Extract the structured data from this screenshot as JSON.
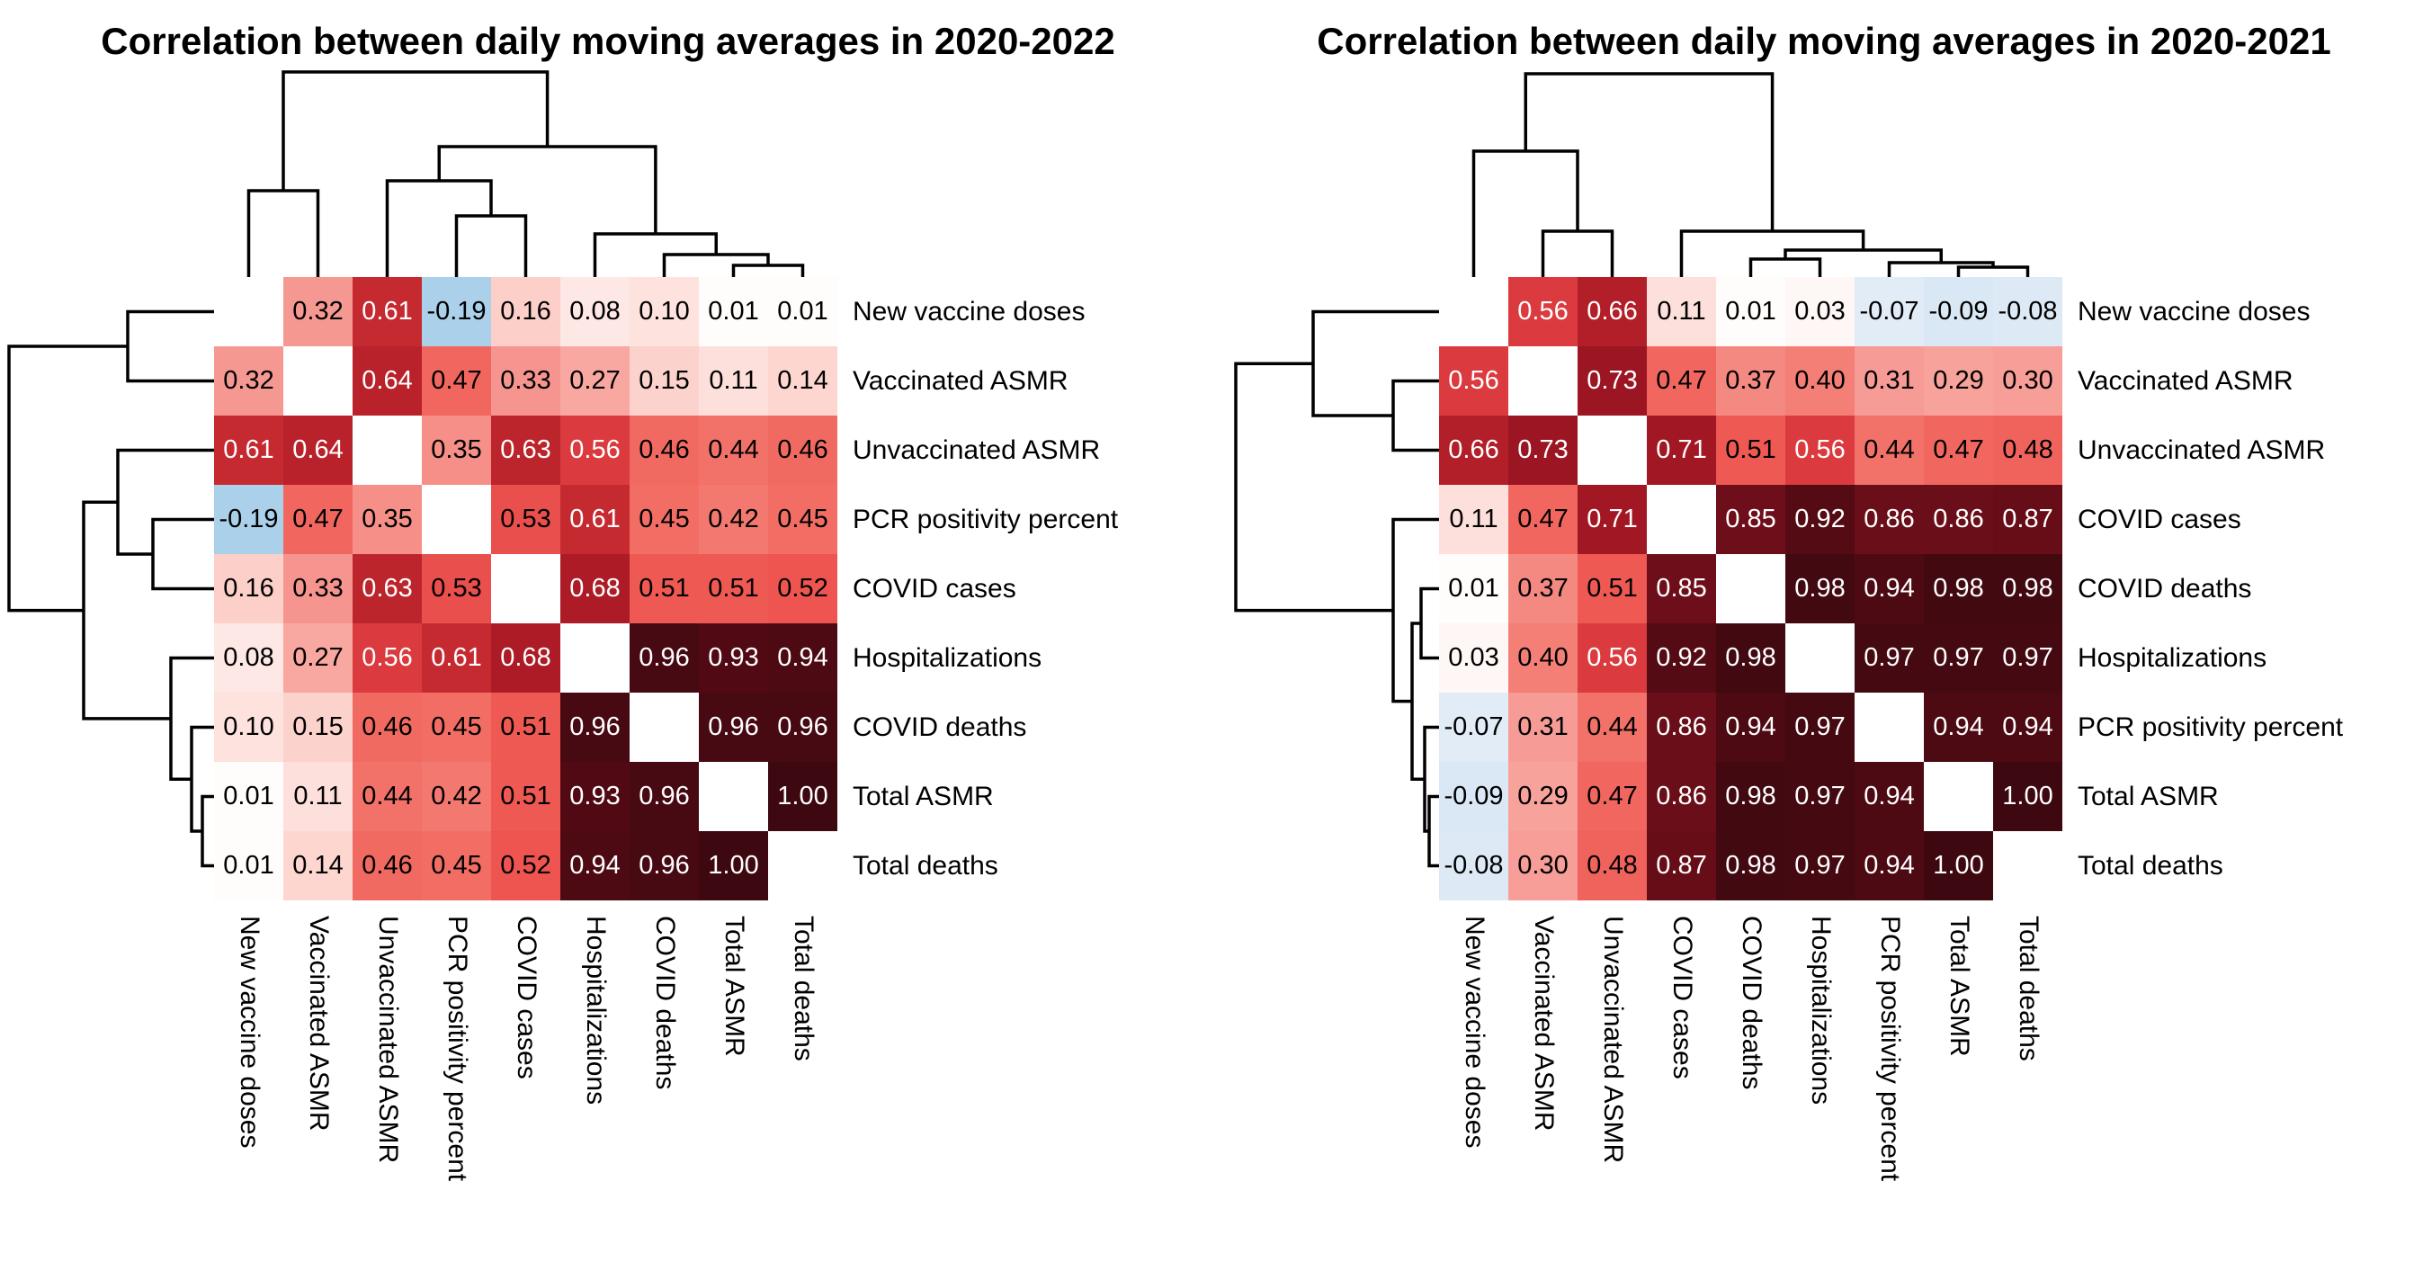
{
  "page": {
    "background": "#ffffff"
  },
  "colormap": {
    "description": "diverging correlation colormap, blue for negative, white at zero, red to dark maroon for positive",
    "negative_color": "#a6cee9",
    "zero_color": "#ffffff",
    "mid_positive_color": "#ee5550",
    "max_color": "#3e0810",
    "white_text_threshold": 0.55,
    "stops": [
      [
        -0.2,
        "#a6cee9"
      ],
      [
        -0.1,
        "#d6e5f3"
      ],
      [
        -0.04,
        "#ebf3fa"
      ],
      [
        0.0,
        "#ffffff"
      ],
      [
        0.04,
        "#fef4f2"
      ],
      [
        0.08,
        "#fde8e5"
      ],
      [
        0.12,
        "#fddcd7"
      ],
      [
        0.16,
        "#fccfc8"
      ],
      [
        0.2,
        "#fac0b9"
      ],
      [
        0.27,
        "#f8a8a0"
      ],
      [
        0.32,
        "#f69892"
      ],
      [
        0.37,
        "#f48981"
      ],
      [
        0.42,
        "#f3786f"
      ],
      [
        0.47,
        "#f1675f"
      ],
      [
        0.52,
        "#ee5550"
      ],
      [
        0.56,
        "#db3b3e"
      ],
      [
        0.61,
        "#c62a31"
      ],
      [
        0.64,
        "#b9222b"
      ],
      [
        0.68,
        "#ac1b26"
      ],
      [
        0.73,
        "#9b1522"
      ],
      [
        0.8,
        "#80101d"
      ],
      [
        0.85,
        "#6e0e1a"
      ],
      [
        0.9,
        "#5c0c16"
      ],
      [
        0.94,
        "#4d0a13"
      ],
      [
        0.97,
        "#440911"
      ],
      [
        1.0,
        "#3e0810"
      ]
    ]
  },
  "chart_data": [
    {
      "type": "heatmap",
      "title": "Correlation between daily moving averages in 2020-2022",
      "legend_position": "none",
      "grid": false,
      "value_range": [
        -1,
        1
      ],
      "cell_values_shown": true,
      "labels": [
        "New vaccine doses",
        "Vaccinated ASMR",
        "Unvaccinated ASMR",
        "PCR positivity percent",
        "COVID cases",
        "Hospitalizations",
        "COVID deaths",
        "Total ASMR",
        "Total deaths"
      ],
      "matrix": [
        [
          null,
          0.32,
          0.61,
          -0.19,
          0.16,
          0.08,
          0.1,
          0.01,
          0.01
        ],
        [
          0.32,
          null,
          0.64,
          0.47,
          0.33,
          0.27,
          0.15,
          0.11,
          0.14
        ],
        [
          0.61,
          0.64,
          null,
          0.35,
          0.63,
          0.56,
          0.46,
          0.44,
          0.46
        ],
        [
          -0.19,
          0.47,
          0.35,
          null,
          0.53,
          0.61,
          0.45,
          0.42,
          0.45
        ],
        [
          0.16,
          0.33,
          0.63,
          0.53,
          null,
          0.68,
          0.51,
          0.51,
          0.52
        ],
        [
          0.08,
          0.27,
          0.56,
          0.61,
          0.68,
          null,
          0.96,
          0.93,
          0.94
        ],
        [
          0.1,
          0.15,
          0.46,
          0.45,
          0.51,
          0.96,
          null,
          0.96,
          0.96
        ],
        [
          0.01,
          0.11,
          0.44,
          0.42,
          0.51,
          0.93,
          0.96,
          null,
          1.0
        ],
        [
          0.01,
          0.14,
          0.46,
          0.45,
          0.52,
          0.94,
          0.96,
          1.0,
          null
        ]
      ],
      "col_dendrogram": [
        [
          7,
          8,
          13
        ],
        [
          6,
          "m0",
          25
        ],
        [
          5,
          "m1",
          48
        ],
        [
          3,
          4,
          68
        ],
        [
          2,
          "m3",
          107
        ],
        [
          "m4",
          "m2",
          145
        ],
        [
          0,
          1,
          96
        ],
        [
          "m6",
          "m5",
          228
        ]
      ],
      "row_dendrogram": [
        [
          7,
          8,
          13
        ],
        [
          6,
          "m0",
          25
        ],
        [
          5,
          "m1",
          48
        ],
        [
          3,
          4,
          68
        ],
        [
          2,
          "m3",
          107
        ],
        [
          "m4",
          "m2",
          145
        ],
        [
          0,
          1,
          96
        ],
        [
          "m6",
          "m5",
          228
        ]
      ]
    },
    {
      "type": "heatmap",
      "title": "Correlation between daily moving averages in 2020-2021",
      "legend_position": "none",
      "grid": false,
      "value_range": [
        -1,
        1
      ],
      "cell_values_shown": true,
      "labels": [
        "New vaccine doses",
        "Vaccinated ASMR",
        "Unvaccinated ASMR",
        "COVID cases",
        "COVID deaths",
        "Hospitalizations",
        "PCR positivity percent",
        "Total ASMR",
        "Total deaths"
      ],
      "matrix": [
        [
          null,
          0.56,
          0.66,
          0.11,
          0.01,
          0.03,
          -0.07,
          -0.09,
          -0.08
        ],
        [
          0.56,
          null,
          0.73,
          0.47,
          0.37,
          0.4,
          0.31,
          0.29,
          0.3
        ],
        [
          0.66,
          0.73,
          null,
          0.71,
          0.51,
          0.56,
          0.44,
          0.47,
          0.48
        ],
        [
          0.11,
          0.47,
          0.71,
          null,
          0.85,
          0.92,
          0.86,
          0.86,
          0.87
        ],
        [
          0.01,
          0.37,
          0.51,
          0.85,
          null,
          0.98,
          0.94,
          0.98,
          0.98
        ],
        [
          0.03,
          0.4,
          0.56,
          0.92,
          0.98,
          null,
          0.97,
          0.97,
          0.97
        ],
        [
          -0.07,
          0.31,
          0.44,
          0.86,
          0.94,
          0.97,
          null,
          0.94,
          0.94
        ],
        [
          -0.09,
          0.29,
          0.47,
          0.86,
          0.98,
          0.97,
          0.94,
          null,
          1.0
        ],
        [
          -0.08,
          0.3,
          0.48,
          0.87,
          0.98,
          0.97,
          0.94,
          1.0,
          null
        ]
      ],
      "col_dendrogram": [
        [
          7,
          8,
          11
        ],
        [
          6,
          "m0",
          16
        ],
        [
          4,
          5,
          20
        ],
        [
          "m2",
          "m1",
          30
        ],
        [
          3,
          "m3",
          51
        ],
        [
          1,
          2,
          51
        ],
        [
          0,
          "m5",
          140
        ],
        [
          "m6",
          "m4",
          226
        ]
      ],
      "row_dendrogram": [
        [
          7,
          8,
          11
        ],
        [
          6,
          "m0",
          16
        ],
        [
          4,
          5,
          20
        ],
        [
          "m2",
          "m1",
          30
        ],
        [
          3,
          "m3",
          51
        ],
        [
          1,
          2,
          51
        ],
        [
          0,
          "m5",
          140
        ],
        [
          "m6",
          "m4",
          226
        ]
      ]
    }
  ]
}
